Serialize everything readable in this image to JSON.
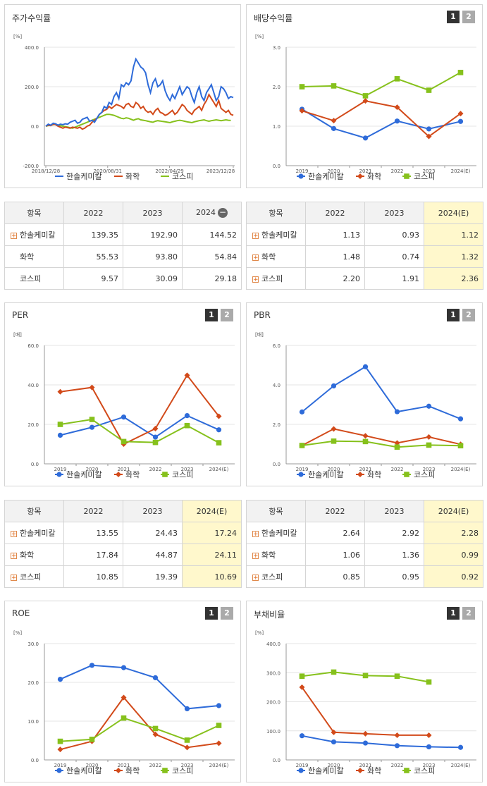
{
  "colors": {
    "company": "#2e6bd9",
    "sector": "#d24a1a",
    "index": "#86c11c"
  },
  "legend": [
    "한솔케미칼",
    "화학",
    "코스피"
  ],
  "chart_data": [
    {
      "id": "stock-return",
      "type": "line",
      "title": "주가수익률",
      "unit": "[%]",
      "xticks": [
        "2018/12/28",
        "2020/08/31",
        "2022/04/29",
        "2023/12/28"
      ],
      "yticks": [
        "-200.0",
        "0.0",
        "200.0",
        "400.0"
      ],
      "ylim": [
        -200,
        400
      ],
      "series": [
        {
          "name": "한솔케미칼",
          "values": [
            0,
            10,
            5,
            15,
            12,
            5,
            10,
            8,
            12,
            10,
            20,
            25,
            30,
            15,
            20,
            35,
            40,
            45,
            25,
            30,
            20,
            40,
            60,
            70,
            100,
            90,
            120,
            110,
            150,
            170,
            140,
            210,
            200,
            220,
            210,
            230,
            300,
            340,
            320,
            300,
            290,
            270,
            210,
            170,
            220,
            240,
            200,
            210,
            230,
            180,
            150,
            130,
            160,
            140,
            170,
            200,
            160,
            180,
            200,
            190,
            150,
            120,
            170,
            200,
            150,
            130,
            170,
            190,
            210,
            170,
            130,
            150,
            200,
            190,
            170,
            140,
            150,
            145
          ]
        },
        {
          "name": "화학",
          "values": [
            0,
            5,
            3,
            10,
            8,
            0,
            -5,
            -10,
            -5,
            -8,
            -10,
            -5,
            -8,
            -10,
            -5,
            -15,
            -10,
            0,
            5,
            20,
            30,
            40,
            60,
            70,
            80,
            85,
            100,
            90,
            100,
            110,
            105,
            100,
            90,
            110,
            115,
            100,
            95,
            120,
            110,
            90,
            100,
            80,
            70,
            75,
            60,
            80,
            90,
            70,
            65,
            55,
            60,
            70,
            80,
            60,
            70,
            90,
            110,
            100,
            80,
            70,
            60,
            80,
            90,
            100,
            80,
            110,
            130,
            160,
            140,
            120,
            100,
            130,
            90,
            80,
            70,
            80,
            60,
            55
          ]
        },
        {
          "name": "코스피",
          "values": [
            0,
            3,
            5,
            8,
            10,
            5,
            2,
            0,
            -2,
            -5,
            -8,
            -10,
            -5,
            0,
            5,
            10,
            15,
            20,
            25,
            30,
            35,
            40,
            45,
            50,
            55,
            60,
            60,
            58,
            55,
            50,
            45,
            40,
            38,
            42,
            40,
            35,
            30,
            35,
            38,
            32,
            30,
            28,
            25,
            22,
            20,
            25,
            28,
            26,
            24,
            22,
            20,
            18,
            22,
            25,
            28,
            30,
            28,
            25,
            22,
            20,
            18,
            22,
            25,
            28,
            30,
            32,
            28,
            25,
            28,
            30,
            32,
            30,
            28,
            30,
            32,
            30,
            29
          ]
        }
      ]
    },
    {
      "id": "dividend-yield",
      "type": "line",
      "title": "배당수익률",
      "unit": "[%]",
      "categories": [
        "2019",
        "2020",
        "2021",
        "2022",
        "2023",
        "2024(E)"
      ],
      "yticks": [
        "0.0",
        "1.0",
        "2.0",
        "3.0"
      ],
      "ylim": [
        0,
        3
      ],
      "series": [
        {
          "name": "한솔케미칼",
          "values": [
            1.43,
            0.94,
            0.7,
            1.13,
            0.93,
            1.12
          ]
        },
        {
          "name": "화학",
          "values": [
            1.39,
            1.14,
            1.64,
            1.48,
            0.74,
            1.32
          ]
        },
        {
          "name": "코스피",
          "values": [
            2.0,
            2.02,
            1.77,
            2.2,
            1.91,
            2.36
          ]
        }
      ]
    },
    {
      "id": "per",
      "type": "line",
      "title": "PER",
      "unit": "[배]",
      "categories": [
        "2019",
        "2020",
        "2021",
        "2022",
        "2023",
        "2024(E)"
      ],
      "yticks": [
        "0.0",
        "20.0",
        "40.0",
        "60.0"
      ],
      "ylim": [
        0,
        60
      ],
      "series": [
        {
          "name": "한솔케미칼",
          "values": [
            14.5,
            18.5,
            23.7,
            13.55,
            24.43,
            17.24
          ]
        },
        {
          "name": "화학",
          "values": [
            36.5,
            38.7,
            10.0,
            17.84,
            44.87,
            24.11
          ]
        },
        {
          "name": "코스피",
          "values": [
            20.0,
            22.5,
            11.3,
            10.85,
            19.39,
            10.69
          ]
        }
      ]
    },
    {
      "id": "pbr",
      "type": "line",
      "title": "PBR",
      "unit": "[배]",
      "categories": [
        "2019",
        "2020",
        "2021",
        "2022",
        "2023",
        "2024(E)"
      ],
      "yticks": [
        "0.0",
        "2.0",
        "4.0",
        "6.0"
      ],
      "ylim": [
        0,
        6
      ],
      "series": [
        {
          "name": "한솔케미칼",
          "values": [
            2.63,
            3.95,
            4.92,
            2.64,
            2.92,
            2.28
          ]
        },
        {
          "name": "화학",
          "values": [
            0.93,
            1.77,
            1.42,
            1.06,
            1.36,
            0.99
          ]
        },
        {
          "name": "코스피",
          "values": [
            0.93,
            1.15,
            1.13,
            0.85,
            0.95,
            0.92
          ]
        }
      ]
    },
    {
      "id": "roe",
      "type": "line",
      "title": "ROE",
      "unit": "[%]",
      "categories": [
        "2019",
        "2020",
        "2021",
        "2022",
        "2023",
        "2024(E)"
      ],
      "yticks": [
        "0.0",
        "10.0",
        "20.0",
        "30.0"
      ],
      "ylim": [
        0,
        30
      ],
      "series": [
        {
          "name": "한솔케미칼",
          "values": [
            20.8,
            24.4,
            23.8,
            21.2,
            13.2,
            14.0
          ]
        },
        {
          "name": "화학",
          "values": [
            2.7,
            4.8,
            16.1,
            6.6,
            3.2,
            4.3
          ]
        },
        {
          "name": "코스피",
          "values": [
            4.8,
            5.3,
            10.8,
            8.1,
            5.1,
            8.9
          ]
        }
      ]
    },
    {
      "id": "debt-ratio",
      "type": "line",
      "title": "부채비율",
      "unit": "[%]",
      "categories": [
        "2019",
        "2020",
        "2021",
        "2022",
        "2023",
        "2024(E)"
      ],
      "yticks": [
        "0.0",
        "100.0",
        "200.0",
        "300.0",
        "400.0"
      ],
      "ylim": [
        0,
        400
      ],
      "series": [
        {
          "name": "한솔케미칼",
          "values": [
            83,
            62,
            58,
            49,
            45,
            43
          ]
        },
        {
          "name": "화학",
          "values": [
            250,
            95,
            90,
            85,
            85,
            null
          ]
        },
        {
          "name": "코스피",
          "values": [
            288,
            302,
            290,
            288,
            268,
            null
          ]
        }
      ]
    }
  ],
  "tables": {
    "stock": {
      "headers": [
        "항목",
        "2022",
        "2023",
        "2024"
      ],
      "rows": [
        [
          "한솔케미칼",
          "139.35",
          "192.90",
          "144.52"
        ],
        [
          "화학",
          "55.53",
          "93.80",
          "54.84"
        ],
        [
          "코스피",
          "9.57",
          "30.09",
          "29.18"
        ]
      ]
    },
    "dividend": {
      "headers": [
        "항목",
        "2022",
        "2023",
        "2024(E)"
      ],
      "rows": [
        [
          "한솔케미칼",
          "1.13",
          "0.93",
          "1.12"
        ],
        [
          "화학",
          "1.48",
          "0.74",
          "1.32"
        ],
        [
          "코스피",
          "2.20",
          "1.91",
          "2.36"
        ]
      ]
    },
    "per": {
      "headers": [
        "항목",
        "2022",
        "2023",
        "2024(E)"
      ],
      "rows": [
        [
          "한솔케미칼",
          "13.55",
          "24.43",
          "17.24"
        ],
        [
          "화학",
          "17.84",
          "44.87",
          "24.11"
        ],
        [
          "코스피",
          "10.85",
          "19.39",
          "10.69"
        ]
      ]
    },
    "pbr": {
      "headers": [
        "항목",
        "2022",
        "2023",
        "2024(E)"
      ],
      "rows": [
        [
          "한솔케미칼",
          "2.64",
          "2.92",
          "2.28"
        ],
        [
          "화학",
          "1.06",
          "1.36",
          "0.99"
        ],
        [
          "코스피",
          "0.85",
          "0.95",
          "0.92"
        ]
      ]
    }
  },
  "buttons": {
    "one": "1",
    "two": "2"
  },
  "glyphs": {
    "plus": "+",
    "minus": "−"
  }
}
